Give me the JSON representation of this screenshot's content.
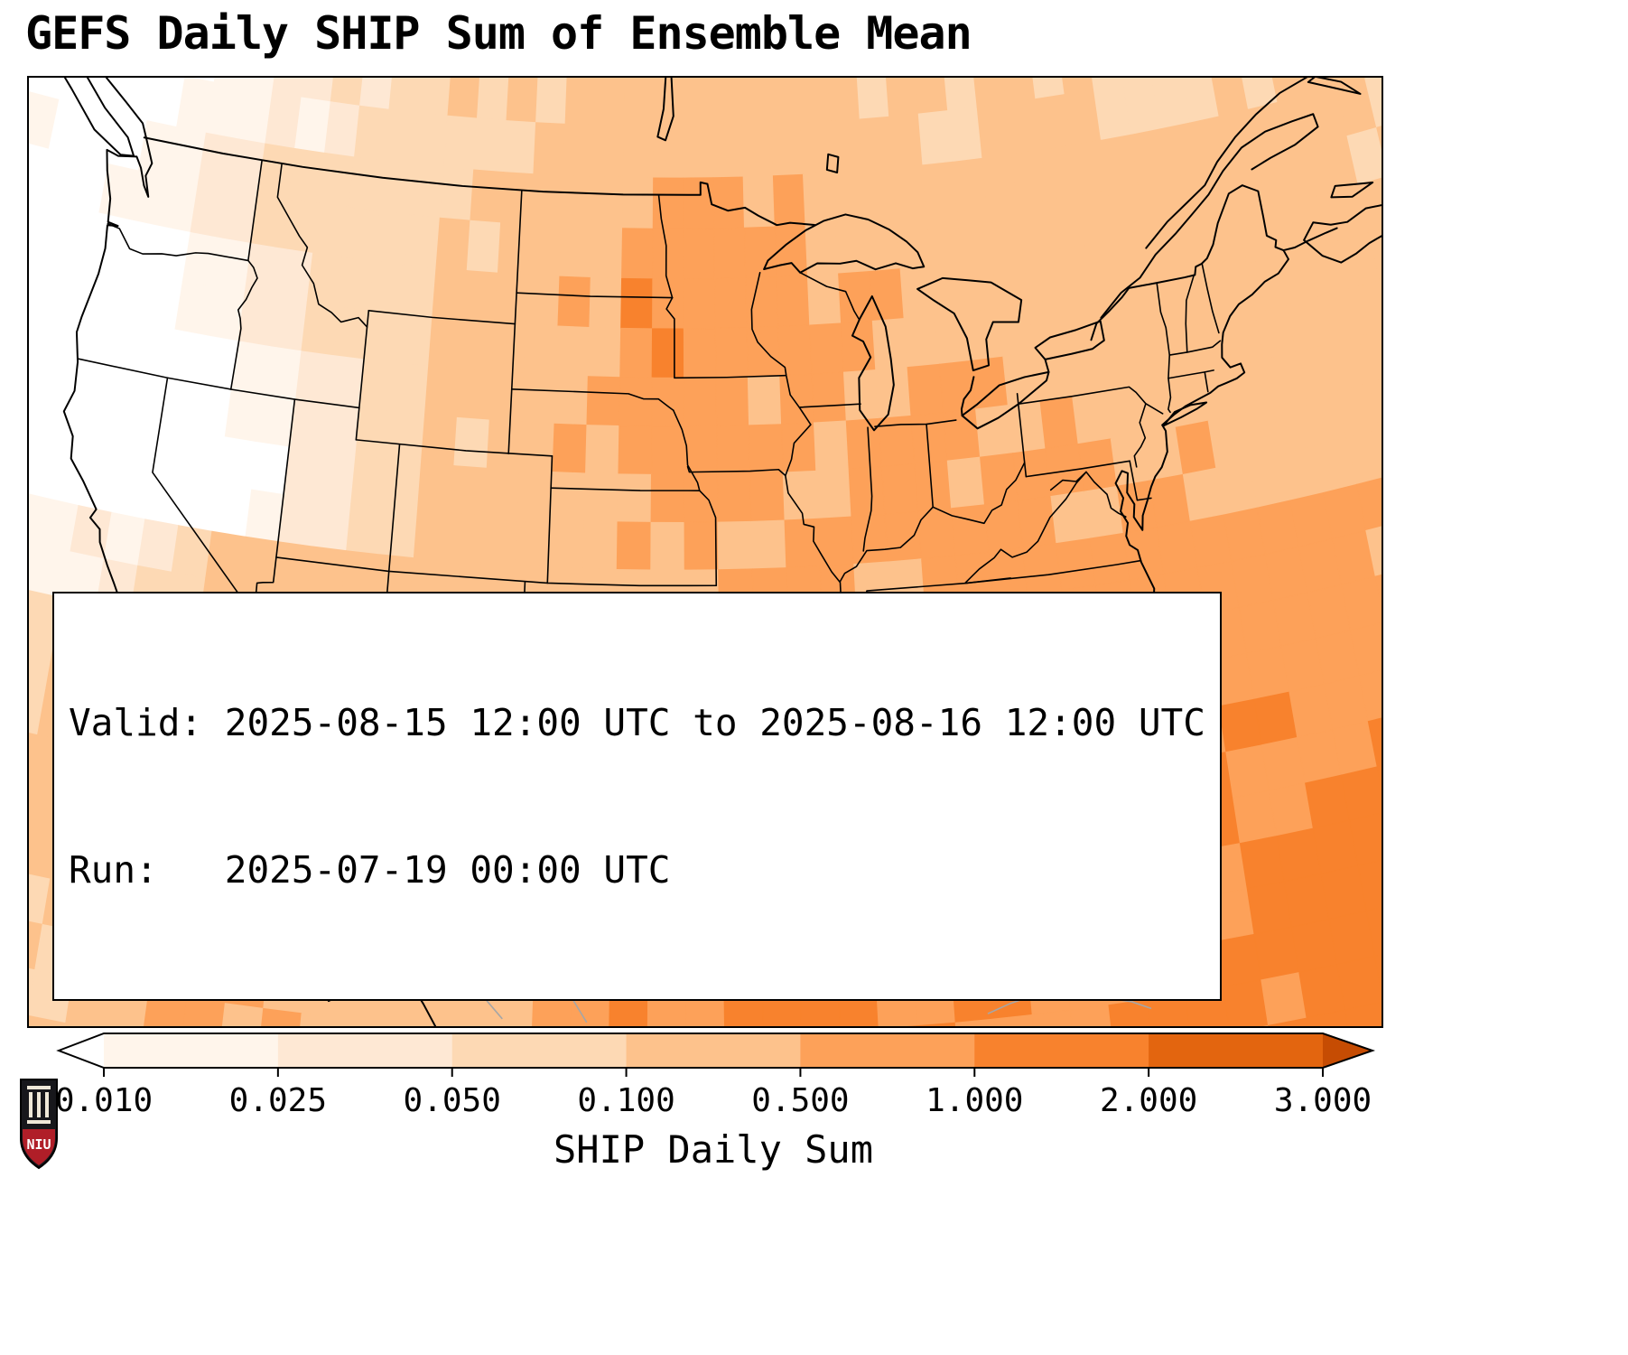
{
  "title": "GEFS Daily SHIP Sum of Ensemble Mean",
  "info_box": {
    "valid_line": "Valid: 2025-08-15 12:00 UTC to 2025-08-16 12:00 UTC",
    "run_line": "Run:   2025-07-19 00:00 UTC"
  },
  "logo": {
    "text": "NIU",
    "shield_color": "#17171b",
    "band_color": "#b01e28"
  },
  "colorbar": {
    "label": "SHIP Daily Sum",
    "tick_labels": [
      "0.010",
      "0.025",
      "0.050",
      "0.100",
      "0.500",
      "1.000",
      "2.000",
      "3.000"
    ],
    "segment_colors": [
      "#fff5eb",
      "#fee8d4",
      "#fdd9b4",
      "#fdc28c",
      "#fda159",
      "#f8822d",
      "#e3650f"
    ],
    "under_color": "#ffffff",
    "over_color": "#c64c03",
    "outline_color": "#000000"
  },
  "chart_data": {
    "type": "heatmap",
    "title": "GEFS Daily SHIP Sum of Ensemble Mean",
    "colorbar_label": "SHIP Daily Sum",
    "valid": "2025-08-15 12:00 UTC to 2025-08-16 12:00 UTC",
    "run": "2025-07-19 00:00 UTC",
    "levels": [
      0.01,
      0.025,
      0.05,
      0.1,
      0.5,
      1.0,
      2.0,
      3.0
    ],
    "extend": "both",
    "projection": {
      "type": "lambert_conformal",
      "center_lon": -96.5,
      "standard_parallel": 25
    },
    "grid": {
      "lon_start": -126,
      "lon_step": 3,
      "lat_start": 52.5,
      "lat_step": -3,
      "nrows": 10,
      "ncols": 22,
      "values": [
        [
          0.004,
          0.01,
          0.02,
          0.03,
          0.06,
          0.08,
          0.1,
          0.12,
          0.15,
          0.12,
          0.2,
          0.15,
          0.25,
          0.12,
          0.1,
          0.15,
          0.12,
          0.08,
          0.06,
          0.1,
          0.15,
          0.12
        ],
        [
          0.01,
          0.02,
          0.04,
          0.06,
          0.07,
          0.08,
          0.1,
          0.15,
          0.2,
          0.6,
          0.8,
          0.5,
          0.35,
          0.3,
          0.3,
          0.25,
          0.2,
          0.15,
          0.15,
          0.2,
          0.18,
          0.12
        ],
        [
          0.004,
          0.008,
          0.02,
          0.04,
          0.06,
          0.08,
          0.15,
          0.25,
          0.45,
          1.3,
          0.85,
          0.7,
          0.5,
          0.45,
          0.35,
          0.3,
          0.3,
          0.3,
          0.3,
          0.25,
          0.2,
          0.15
        ],
        [
          0.003,
          0.004,
          0.006,
          0.015,
          0.03,
          0.06,
          0.12,
          0.3,
          0.5,
          0.7,
          0.85,
          0.65,
          0.55,
          0.5,
          0.5,
          0.45,
          0.4,
          0.4,
          0.35,
          0.3,
          0.3,
          0.3
        ],
        [
          0.004,
          0.003,
          0.005,
          0.01,
          0.04,
          0.08,
          0.12,
          0.2,
          0.3,
          0.5,
          0.65,
          0.6,
          0.6,
          0.6,
          0.55,
          0.5,
          0.5,
          0.45,
          0.4,
          0.4,
          0.4,
          0.4
        ],
        [
          0.015,
          0.03,
          0.06,
          0.15,
          0.45,
          0.3,
          0.15,
          0.12,
          0.2,
          0.3,
          0.55,
          0.65,
          0.6,
          0.6,
          0.6,
          0.65,
          0.7,
          0.7,
          0.7,
          0.7,
          0.65,
          0.6
        ],
        [
          0.06,
          0.1,
          0.15,
          0.35,
          0.45,
          0.3,
          0.15,
          0.05,
          0.15,
          0.35,
          0.6,
          0.7,
          0.7,
          0.7,
          0.7,
          0.75,
          0.8,
          0.8,
          0.8,
          0.8,
          0.8,
          0.8
        ],
        [
          0.1,
          0.2,
          0.3,
          1.1,
          0.7,
          0.15,
          0.1,
          0.3,
          0.25,
          0.8,
          1.3,
          1.2,
          0.9,
          0.85,
          0.8,
          0.85,
          0.9,
          0.9,
          0.9,
          0.9,
          0.9,
          0.9
        ],
        [
          0.08,
          0.15,
          0.2,
          0.5,
          1.0,
          0.8,
          0.5,
          0.35,
          0.5,
          0.9,
          1.4,
          1.5,
          1.2,
          1.0,
          0.9,
          0.95,
          1.0,
          1.0,
          1.0,
          1.0,
          1.05,
          1.1
        ],
        [
          0.05,
          0.1,
          0.3,
          0.6,
          0.5,
          0.4,
          0.3,
          0.5,
          0.8,
          1.0,
          1.1,
          1.0,
          1.0,
          0.9,
          0.95,
          1.0,
          1.1,
          1.2,
          1.4,
          1.6,
          1.9,
          2.2
        ]
      ]
    }
  }
}
